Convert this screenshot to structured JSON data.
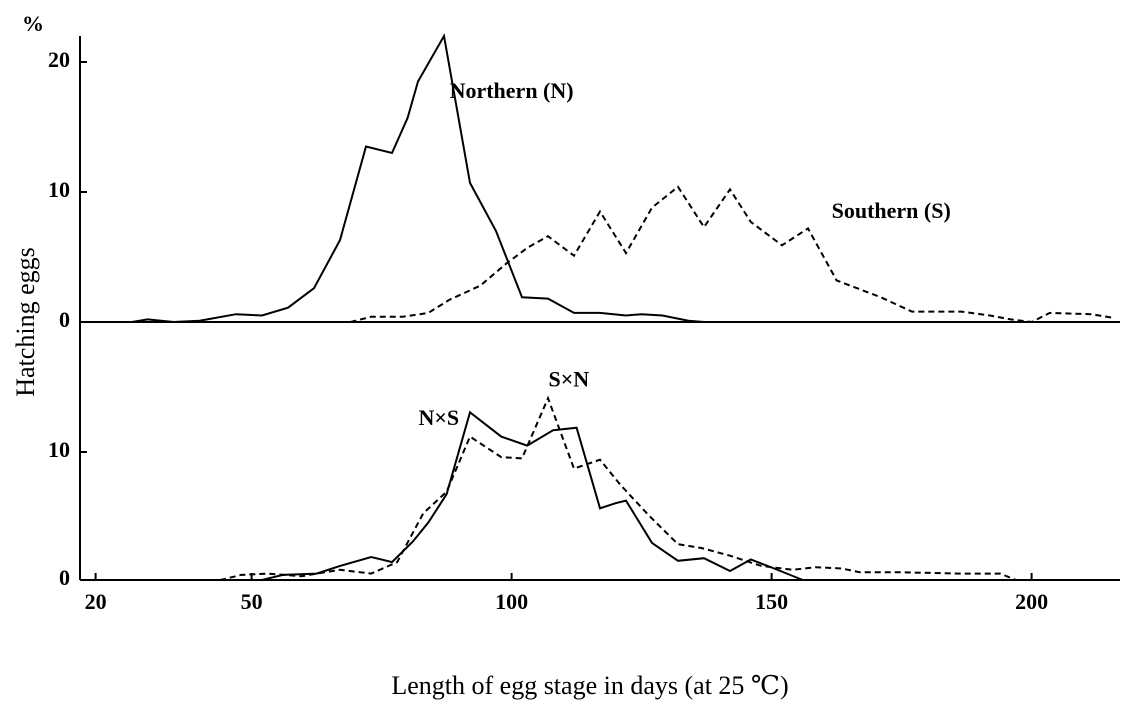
{
  "chart_data": [
    {
      "type": "line",
      "ylabel_unit": "%",
      "ylabel": "Hatching  eggs",
      "xlim": [
        17,
        217
      ],
      "ylim": [
        0,
        22.2
      ],
      "yticks": [
        0,
        10,
        20
      ],
      "annotations": [
        {
          "text": "Northern (N)",
          "x": 100,
          "y": 17.6
        },
        {
          "text": "Southern (S)",
          "x": 173,
          "y": 8.4
        }
      ],
      "series": [
        {
          "name": "Northern (N)",
          "color": "#000000",
          "dashed": false,
          "x": [
            27,
            30,
            35,
            40,
            47,
            52,
            57,
            62,
            67,
            72,
            77,
            80,
            82,
            87,
            92,
            97,
            102,
            107,
            112,
            117,
            122,
            125,
            129,
            134,
            137
          ],
          "values": [
            0,
            0.2,
            0,
            0.1,
            0.6,
            0.5,
            1.1,
            2.6,
            6.3,
            13.5,
            13,
            15.7,
            18.5,
            22,
            10.7,
            7,
            1.9,
            1.8,
            0.7,
            0.7,
            0.5,
            0.6,
            0.5,
            0.1,
            0
          ]
        },
        {
          "name": "Southern (S)",
          "color": "#000000",
          "dashed": true,
          "x": [
            69,
            73,
            79,
            84,
            88,
            94,
            99,
            103,
            107,
            112,
            117,
            122,
            127,
            132,
            137,
            142,
            146,
            152,
            157,
            162.5,
            171,
            177,
            186.5,
            192,
            196,
            200,
            203.5,
            211.5,
            216
          ],
          "values": [
            0,
            0.4,
            0.4,
            0.7,
            1.7,
            2.8,
            4.5,
            5.7,
            6.6,
            5.1,
            8.5,
            5.3,
            8.8,
            10.4,
            7.3,
            10.2,
            7.7,
            5.9,
            7.2,
            3.2,
            1.9,
            0.8,
            0.8,
            0.5,
            0.2,
            0,
            0.7,
            0.6,
            0.3
          ]
        }
      ]
    },
    {
      "type": "line",
      "xlabel": "Length of  egg  stage  in  days (at 25 ℃)",
      "xlim": [
        17,
        217
      ],
      "ylim": [
        0,
        20
      ],
      "xticks": [
        20,
        50,
        100,
        150,
        200
      ],
      "yticks": [
        0,
        10
      ],
      "annotations": [
        {
          "text": "N×S",
          "x": 86,
          "y": 12.5
        },
        {
          "text": "S×N",
          "x": 111,
          "y": 15.5
        }
      ],
      "series": [
        {
          "name": "N×S",
          "color": "#000000",
          "dashed": false,
          "x": [
            17,
            52,
            56,
            62.5,
            67,
            73,
            77,
            81,
            84,
            87.5,
            92,
            98,
            103,
            108,
            112.5,
            117,
            120,
            122,
            127,
            132,
            137,
            142,
            146,
            150.5,
            156
          ],
          "values": [
            0,
            0,
            0.4,
            0.5,
            1.1,
            1.8,
            1.4,
            3,
            4.5,
            6.7,
            13.1,
            11.2,
            10.5,
            11.7,
            11.9,
            5.6,
            6,
            6.2,
            2.9,
            1.5,
            1.7,
            0.7,
            1.6,
            0.9,
            0
          ]
        },
        {
          "name": "S×N",
          "color": "#000000",
          "dashed": true,
          "x": [
            17,
            44,
            48,
            53,
            59.6,
            67,
            73,
            78,
            83,
            87.5,
            92,
            98,
            102,
            107,
            112,
            117,
            121,
            126.5,
            132,
            136.5,
            142,
            148,
            154,
            158.5,
            163.5,
            167,
            175,
            186.5,
            194,
            197
          ],
          "values": [
            0,
            0,
            0.4,
            0.5,
            0.3,
            0.8,
            0.5,
            1.4,
            5.2,
            6.9,
            11.2,
            9.6,
            9.5,
            14.2,
            8.7,
            9.4,
            7.4,
            5,
            2.8,
            2.5,
            1.9,
            1.1,
            0.8,
            1,
            0.9,
            0.6,
            0.6,
            0.5,
            0.5,
            0
          ]
        }
      ]
    }
  ]
}
